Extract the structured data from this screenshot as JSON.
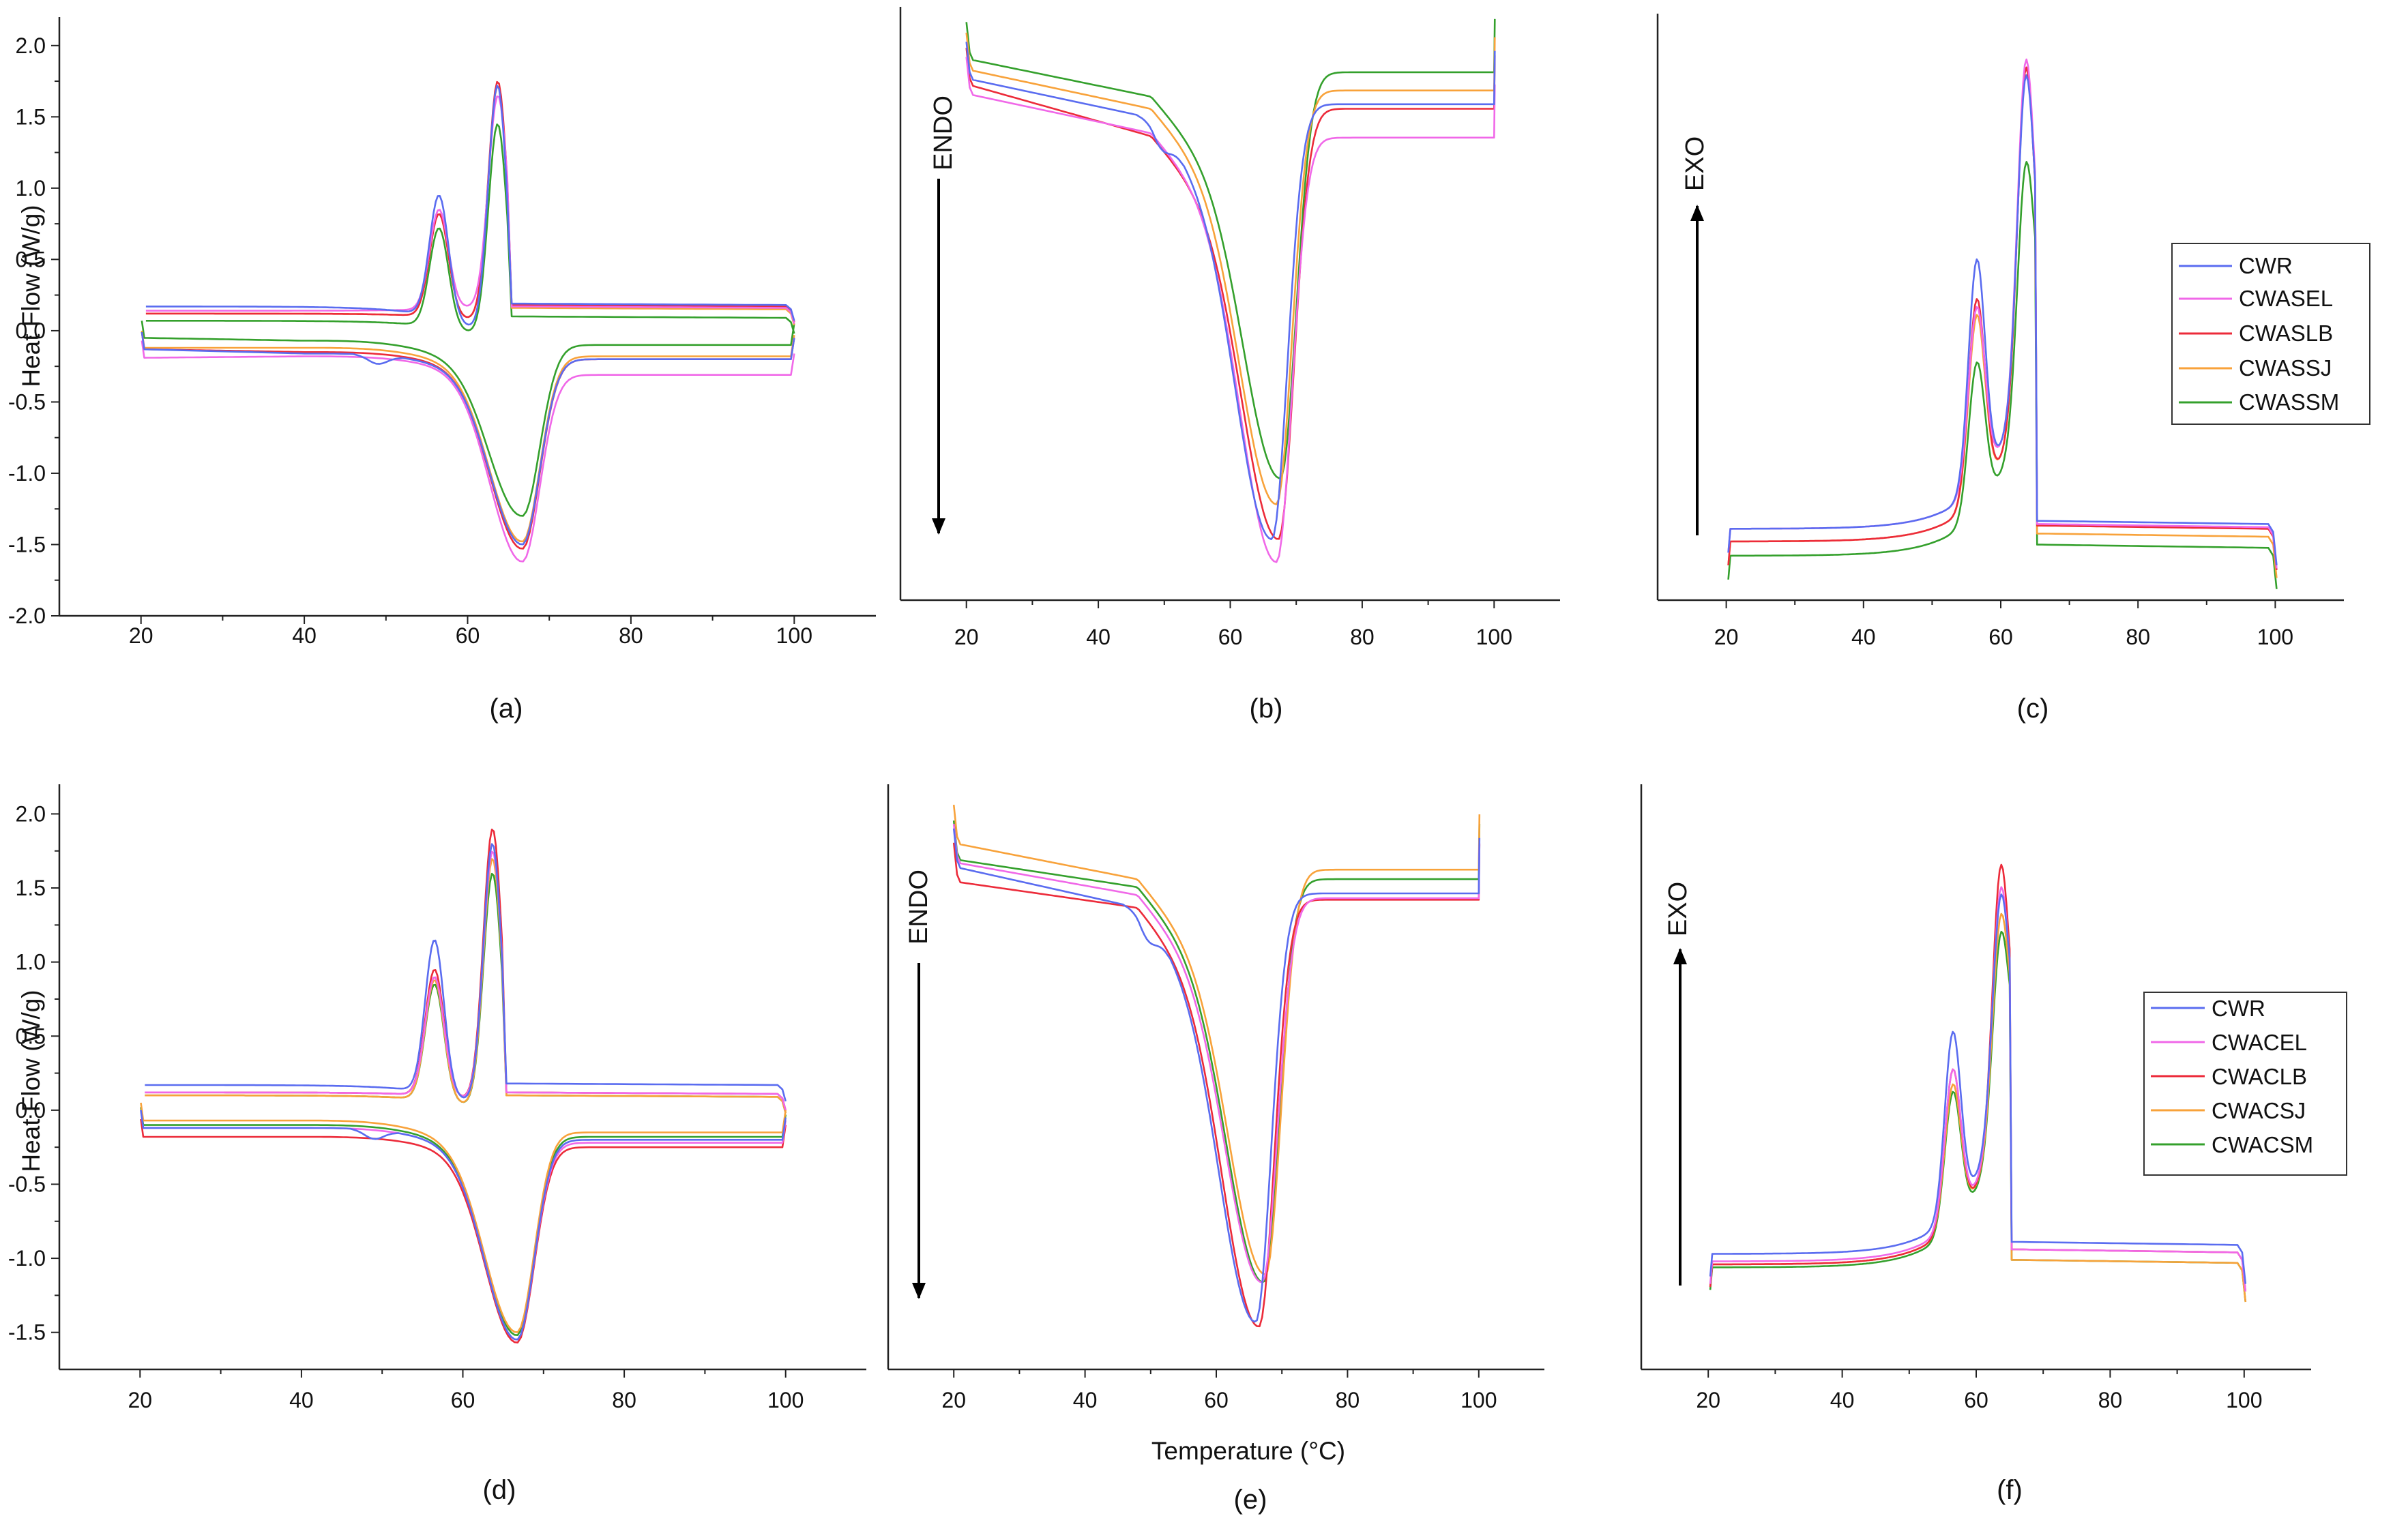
{
  "colors": {
    "CWR": "#5a6cf0",
    "CWASEL": "#f068e8",
    "CWASLB": "#ec2b3a",
    "CWASSJ": "#f8a23a",
    "CWASSM": "#34a02c",
    "CWACEL": "#f068e8",
    "CWACLB": "#ec2b3a",
    "CWACSJ": "#f8a23a",
    "CWACSM": "#34a02c"
  },
  "figure": {
    "x_title": "Temperature (°C)",
    "y_title_top": "Heat Flow (W/g)",
    "y_title_bottom": "Heat Flow (W/g)",
    "x_ticks": [
      "20",
      "40",
      "60",
      "80",
      "100"
    ],
    "y_ticks_top": [
      "2.0",
      "1.5",
      "1.0",
      "0.5",
      "0.0",
      "-0.5",
      "-1.0",
      "-1.5",
      "-2.0"
    ],
    "y_ticks_bottom": [
      "2.0",
      "1.5",
      "1.0",
      "0.5",
      "0.0",
      "-0.5",
      "-1.0",
      "-1.5"
    ],
    "endo_label": "ENDO",
    "exo_label": "EXO",
    "legend_top": [
      "CWR",
      "CWASEL",
      "CWASLB",
      "CWASSJ",
      "CWASSM"
    ],
    "legend_bottom": [
      "CWR",
      "CWACEL",
      "CWACLB",
      "CWACSJ",
      "CWACSM"
    ]
  },
  "chart_data": [
    {
      "panel": "(a)",
      "type": "line",
      "title": "",
      "xlabel": "",
      "ylabel": "Heat Flow (W/g)",
      "xlim": [
        10,
        110
      ],
      "ylim": [
        -2.0,
        2.2
      ],
      "series": [
        {
          "name": "CWR",
          "heat": {
            "base": 0.17,
            "s1": 0.1,
            "p1": 0.95,
            "p2": 1.72,
            "end": 0.19
          },
          "cool": {
            "base": -0.13,
            "s1": -0.16,
            "v": -1.5,
            "end": -0.2,
            "shoulder": true
          }
        },
        {
          "name": "CWASEL",
          "heat": {
            "base": 0.14,
            "s1": 0.15,
            "p1": 0.85,
            "p2": 1.65,
            "end": 0.17
          },
          "cool": {
            "base": -0.19,
            "s1": -0.18,
            "v": -1.62,
            "end": -0.31
          }
        },
        {
          "name": "CWASLB",
          "heat": {
            "base": 0.12,
            "s1": 0.1,
            "p1": 0.82,
            "p2": 1.75,
            "end": 0.18
          },
          "cool": {
            "base": -0.13,
            "s1": -0.15,
            "v": -1.53,
            "end": -0.2
          }
        },
        {
          "name": "CWASSJ",
          "heat": {
            "base": 0.12,
            "s1": 0.1,
            "p1": 0.82,
            "p2": 1.72,
            "end": 0.16
          },
          "cool": {
            "base": -0.12,
            "s1": -0.12,
            "v": -1.48,
            "end": -0.18
          }
        },
        {
          "name": "CWASSM",
          "heat": {
            "base": 0.07,
            "s1": 0.03,
            "p1": 0.72,
            "p2": 1.45,
            "end": 0.1
          },
          "cool": {
            "base": -0.05,
            "s1": -0.07,
            "v": -1.3,
            "end": -0.1
          }
        }
      ]
    },
    {
      "panel": "(b)",
      "type": "line",
      "title": "",
      "xlabel": "",
      "ylabel": "",
      "xlim": [
        10,
        110
      ],
      "arrow": "ENDO",
      "series": [
        {
          "name": "CWR",
          "y20": 1.57,
          "y48": 1.32,
          "v": -1.45,
          "vx": 66.3,
          "end": 1.41,
          "shoulder": true
        },
        {
          "name": "CWASEL",
          "y20": 1.47,
          "y48": 1.22,
          "v": -1.6,
          "vx": 67.0,
          "end": 1.19
        },
        {
          "name": "CWASLB",
          "y20": 1.53,
          "y48": 1.2,
          "v": -1.45,
          "vx": 67.3,
          "end": 1.38
        },
        {
          "name": "CWASSJ",
          "y20": 1.63,
          "y48": 1.38,
          "v": -1.22,
          "vx": 67.0,
          "end": 1.5
        },
        {
          "name": "CWASSM",
          "y20": 1.7,
          "y48": 1.46,
          "v": -1.05,
          "vx": 67.6,
          "end": 1.62
        }
      ]
    },
    {
      "panel": "(c)",
      "type": "line",
      "title": "",
      "xlabel": "",
      "ylabel": "",
      "xlim": [
        10,
        110
      ],
      "arrow": "EXO",
      "series": [
        {
          "name": "CWR",
          "base": -1.3,
          "p1": 0.4,
          "p2": 1.55,
          "end": -1.25
        },
        {
          "name": "CWASEL",
          "base": -1.3,
          "p1": 0.1,
          "p2": 1.65,
          "end": -1.27
        },
        {
          "name": "CWASLB",
          "base": -1.38,
          "p1": 0.15,
          "p2": 1.6,
          "end": -1.28
        },
        {
          "name": "CWASSJ",
          "base": -1.38,
          "p1": 0.05,
          "p2": 1.6,
          "end": -1.33
        },
        {
          "name": "CWASSM",
          "base": -1.47,
          "p1": -0.25,
          "p2": 1.0,
          "end": -1.4
        }
      ]
    },
    {
      "panel": "(d)",
      "type": "line",
      "title": "",
      "xlabel": "",
      "ylabel": "Heat Flow (W/g)",
      "xlim": [
        10,
        110
      ],
      "ylim": [
        -1.75,
        2.2
      ],
      "series": [
        {
          "name": "CWR",
          "heat": {
            "base": 0.17,
            "s1": 0.12,
            "p1": 1.15,
            "p2": 1.8,
            "end": 0.18
          },
          "cool": {
            "base": -0.12,
            "s1": -0.12,
            "v": -1.55,
            "end": -0.2,
            "shoulder": true
          }
        },
        {
          "name": "CWACEL",
          "heat": {
            "base": 0.12,
            "s1": 0.1,
            "p1": 0.9,
            "p2": 1.75,
            "end": 0.12
          },
          "cool": {
            "base": -0.12,
            "s1": -0.12,
            "v": -1.55,
            "end": -0.22
          }
        },
        {
          "name": "CWACLB",
          "heat": {
            "base": 0.12,
            "s1": 0.1,
            "p1": 0.95,
            "p2": 1.9,
            "end": 0.12
          },
          "cool": {
            "base": -0.18,
            "s1": -0.18,
            "v": -1.57,
            "end": -0.25
          }
        },
        {
          "name": "CWACSJ",
          "heat": {
            "base": 0.1,
            "s1": 0.07,
            "p1": 0.88,
            "p2": 1.7,
            "end": 0.1
          },
          "cool": {
            "base": -0.07,
            "s1": -0.07,
            "v": -1.5,
            "end": -0.15
          }
        },
        {
          "name": "CWACSM",
          "heat": {
            "base": 0.1,
            "s1": 0.07,
            "p1": 0.85,
            "p2": 1.6,
            "end": 0.1
          },
          "cool": {
            "base": -0.1,
            "s1": -0.1,
            "v": -1.52,
            "end": -0.18
          }
        }
      ]
    },
    {
      "panel": "(e)",
      "type": "line",
      "title": "",
      "xlabel": "Temperature (°C)",
      "ylabel": "",
      "xlim": [
        10,
        110
      ],
      "arrow": "ENDO",
      "series": [
        {
          "name": "CWR",
          "y20": 1.57,
          "y48": 1.32,
          "v": -1.3,
          "vx": 66.0,
          "end": 1.41,
          "shoulder": true
        },
        {
          "name": "CWACEL",
          "y20": 1.6,
          "y48": 1.4,
          "v": -1.05,
          "vx": 67.0,
          "end": 1.38
        },
        {
          "name": "CWACLB",
          "y20": 1.48,
          "y48": 1.32,
          "v": -1.33,
          "vx": 66.5,
          "end": 1.37
        },
        {
          "name": "CWACSJ",
          "y20": 1.72,
          "y48": 1.5,
          "v": -1.0,
          "vx": 67.5,
          "end": 1.56
        },
        {
          "name": "CWACSM",
          "y20": 1.62,
          "y48": 1.45,
          "v": -1.05,
          "vx": 67.2,
          "end": 1.5
        }
      ]
    },
    {
      "panel": "(f)",
      "type": "line",
      "title": "",
      "xlabel": "",
      "ylabel": "",
      "xlim": [
        10,
        110
      ],
      "arrow": "EXO",
      "series": [
        {
          "name": "CWR",
          "base": -0.83,
          "p1": 0.65,
          "p2": 1.55,
          "end": -0.75
        },
        {
          "name": "CWACEL",
          "base": -0.88,
          "p1": 0.4,
          "p2": 1.6,
          "end": -0.8
        },
        {
          "name": "CWACLB",
          "base": -0.9,
          "p1": 0.4,
          "p2": 1.75,
          "end": -0.8
        },
        {
          "name": "CWACSJ",
          "base": -0.9,
          "p1": 0.3,
          "p2": 1.42,
          "end": -0.87
        },
        {
          "name": "CWACSM",
          "base": -0.92,
          "p1": 0.25,
          "p2": 1.3,
          "end": -0.87
        }
      ]
    }
  ]
}
